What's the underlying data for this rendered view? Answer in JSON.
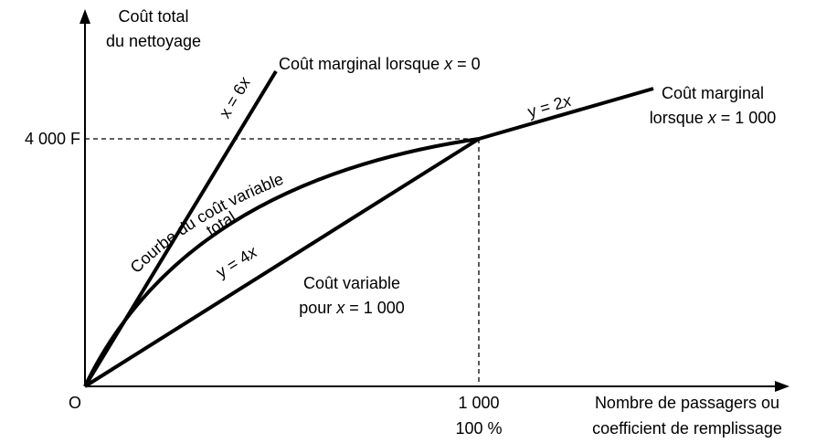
{
  "axes": {
    "y_label": [
      "Coût total",
      "du nettoyage"
    ],
    "origin": "O",
    "y_value": "4 000 F",
    "x_value": [
      "1 000",
      "100 %"
    ],
    "x_label": [
      "Nombre de passagers ou",
      "coefficient de remplissage"
    ]
  },
  "lines": {
    "steep": {
      "eq": [
        "x = 6",
        "x"
      ],
      "label": [
        "Coût marginal lorsque ",
        "x",
        " = 0"
      ]
    },
    "chord": {
      "eq": [
        "y = 4",
        "x"
      ],
      "label": [
        "Coût variable",
        "pour ",
        "x",
        " = 1 000"
      ]
    },
    "tangent": {
      "eq": [
        "y = 2",
        "x"
      ],
      "label": [
        "Coût marginal",
        "lorsque ",
        "x",
        " = 1 000"
      ]
    },
    "curve": {
      "label": [
        "Courbe du coût variable",
        "total"
      ]
    }
  }
}
